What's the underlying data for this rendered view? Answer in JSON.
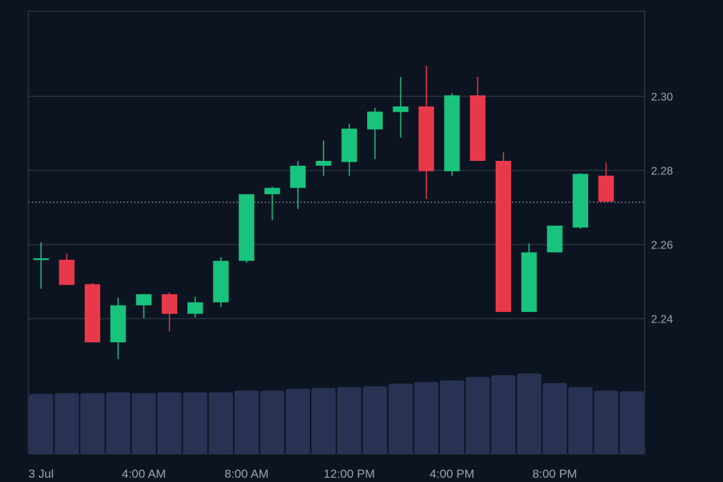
{
  "chart_data": {
    "type": "candlestick",
    "x_tick_labels": [
      "3 Jul",
      "4:00 AM",
      "8:00 AM",
      "12:00 PM",
      "4:00 PM",
      "8:00 PM"
    ],
    "x_tick_hours": [
      0,
      4,
      8,
      12,
      16,
      20
    ],
    "y_tick_labels": [
      "2.30",
      "2.28",
      "2.26",
      "2.24"
    ],
    "y_ticks": [
      2.3,
      2.28,
      2.26,
      2.24
    ],
    "y_range": [
      2.2034,
      2.3229
    ],
    "x_range_hours": [
      -0.5,
      23.5
    ],
    "current_price_line": 2.2715,
    "colors": {
      "background": "#0d1421",
      "grid": "#2a3342",
      "up": "#19c37d",
      "down": "#e8394a",
      "volume": "#283253",
      "axis_text": "#9aa3b2",
      "price_line": "#8a93a3"
    },
    "candles": [
      {
        "hour": 0,
        "open": 2.256,
        "high": 2.2605,
        "low": 2.248,
        "close": 2.2562
      },
      {
        "hour": 1,
        "open": 2.2558,
        "high": 2.2575,
        "low": 2.249,
        "close": 2.249
      },
      {
        "hour": 2,
        "open": 2.2492,
        "high": 2.2495,
        "low": 2.2335,
        "close": 2.2335
      },
      {
        "hour": 3,
        "open": 2.2335,
        "high": 2.2455,
        "low": 2.229,
        "close": 2.2435
      },
      {
        "hour": 4,
        "open": 2.2435,
        "high": 2.2465,
        "low": 2.24,
        "close": 2.2465
      },
      {
        "hour": 5,
        "open": 2.2465,
        "high": 2.247,
        "low": 2.2365,
        "close": 2.2412
      },
      {
        "hour": 6,
        "open": 2.2412,
        "high": 2.2458,
        "low": 2.2402,
        "close": 2.2443
      },
      {
        "hour": 7,
        "open": 2.2443,
        "high": 2.2565,
        "low": 2.243,
        "close": 2.2555
      },
      {
        "hour": 8,
        "open": 2.2555,
        "high": 2.2735,
        "low": 2.255,
        "close": 2.2735
      },
      {
        "hour": 9,
        "open": 2.2735,
        "high": 2.2755,
        "low": 2.2665,
        "close": 2.2752
      },
      {
        "hour": 10,
        "open": 2.2752,
        "high": 2.2825,
        "low": 2.2695,
        "close": 2.2812
      },
      {
        "hour": 11,
        "open": 2.2812,
        "high": 2.288,
        "low": 2.2785,
        "close": 2.2825
      },
      {
        "hour": 12,
        "open": 2.2822,
        "high": 2.2925,
        "low": 2.2785,
        "close": 2.2912
      },
      {
        "hour": 13,
        "open": 2.291,
        "high": 2.2968,
        "low": 2.283,
        "close": 2.2958
      },
      {
        "hour": 14,
        "open": 2.2957,
        "high": 2.3052,
        "low": 2.2888,
        "close": 2.2972
      },
      {
        "hour": 15,
        "open": 2.2972,
        "high": 2.3082,
        "low": 2.2722,
        "close": 2.2797
      },
      {
        "hour": 16,
        "open": 2.2797,
        "high": 2.3008,
        "low": 2.2785,
        "close": 2.3002
      },
      {
        "hour": 17,
        "open": 2.3002,
        "high": 2.3052,
        "low": 2.2825,
        "close": 2.2825
      },
      {
        "hour": 18,
        "open": 2.2825,
        "high": 2.2848,
        "low": 2.2417,
        "close": 2.2417
      },
      {
        "hour": 19,
        "open": 2.2417,
        "high": 2.2602,
        "low": 2.2417,
        "close": 2.2578
      },
      {
        "hour": 20,
        "open": 2.2578,
        "high": 2.265,
        "low": 2.2577,
        "close": 2.265
      },
      {
        "hour": 21,
        "open": 2.2645,
        "high": 2.2792,
        "low": 2.2642,
        "close": 2.279
      },
      {
        "hour": 22,
        "open": 2.2785,
        "high": 2.282,
        "low": 2.2715,
        "close": 2.2715
      }
    ],
    "volume": {
      "relative_levels": [
        0.7,
        0.71,
        0.71,
        0.72,
        0.71,
        0.72,
        0.72,
        0.72,
        0.74,
        0.74,
        0.76,
        0.77,
        0.78,
        0.79,
        0.82,
        0.84,
        0.86,
        0.9,
        0.92,
        0.94,
        0.83,
        0.78,
        0.74,
        0.73
      ]
    }
  }
}
